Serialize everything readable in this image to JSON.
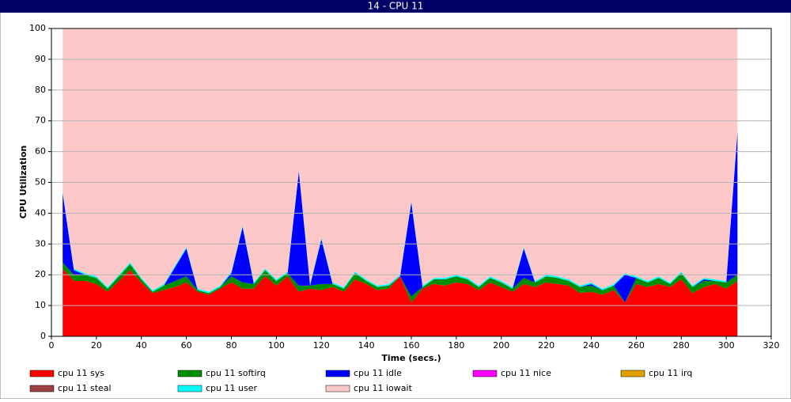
{
  "window_title": "14 - CPU 11",
  "chart_data": {
    "type": "stacked_area",
    "xlabel": "Time (secs.)",
    "ylabel": "CPU Utilization",
    "xlim": [
      0,
      320
    ],
    "xticks": [
      0,
      20,
      40,
      60,
      80,
      100,
      120,
      140,
      160,
      180,
      200,
      220,
      240,
      260,
      280,
      300,
      320
    ],
    "ylim": [
      0,
      100
    ],
    "yticks": [
      0,
      10,
      20,
      30,
      40,
      50,
      60,
      70,
      80,
      90,
      100
    ],
    "grid": true,
    "x": [
      5,
      10,
      15,
      20,
      25,
      30,
      35,
      40,
      45,
      50,
      55,
      60,
      65,
      70,
      75,
      80,
      85,
      90,
      95,
      100,
      105,
      110,
      115,
      120,
      125,
      130,
      135,
      140,
      145,
      150,
      155,
      160,
      165,
      170,
      175,
      180,
      185,
      190,
      195,
      200,
      205,
      210,
      215,
      220,
      225,
      230,
      235,
      240,
      245,
      250,
      255,
      260,
      265,
      270,
      275,
      280,
      285,
      290,
      295,
      300,
      305
    ],
    "series": [
      {
        "name": "cpu 11 sys",
        "color": "#ff0000",
        "values": [
          22,
          18,
          18,
          17,
          14.5,
          18,
          21.5,
          17.5,
          14,
          15,
          16,
          17.5,
          14.5,
          13.5,
          15.5,
          17.5,
          15.5,
          15.5,
          19.5,
          16.5,
          19.5,
          14.5,
          15.5,
          15,
          16,
          14.5,
          18.5,
          17,
          15,
          15.5,
          19.5,
          11,
          15.5,
          17,
          16.5,
          17.5,
          17,
          15,
          17.5,
          16,
          14.5,
          17,
          16,
          17.5,
          17,
          16.5,
          14,
          14.5,
          13.5,
          15,
          11,
          17,
          16,
          17,
          16,
          18.5,
          14,
          16,
          17,
          15.5,
          18
        ]
      },
      {
        "name": "cpu 11 softirq",
        "color": "#008c00",
        "values": [
          2,
          2,
          2,
          2,
          1,
          1.5,
          2,
          1,
          0.5,
          1.5,
          2,
          2,
          0.5,
          0.5,
          0.5,
          2,
          2,
          1.5,
          2,
          1.5,
          1,
          2,
          1,
          2,
          1,
          1,
          2,
          1,
          1,
          1,
          0,
          2,
          0.5,
          1.5,
          2,
          2,
          1.5,
          1,
          1.5,
          1.5,
          1,
          2,
          1.5,
          2,
          2,
          1.5,
          2,
          2,
          1.5,
          1.5,
          0,
          2,
          1.5,
          2,
          1,
          2,
          2,
          2,
          1,
          2,
          2
        ]
      },
      {
        "name": "cpu 11 idle",
        "color": "#0000ff",
        "values": [
          22.5,
          1.5,
          0,
          0,
          0,
          0,
          0,
          0,
          0,
          0,
          4.5,
          9,
          0,
          0,
          0,
          1,
          18,
          0,
          0,
          0,
          0,
          37,
          0,
          14.5,
          0,
          0,
          0,
          0,
          0,
          0,
          0,
          30.5,
          0,
          0,
          0,
          0,
          0,
          0,
          0,
          0,
          0,
          9.5,
          0,
          0,
          0,
          0,
          0,
          0.5,
          0,
          0,
          9,
          0,
          0,
          0,
          0,
          0,
          0,
          0.5,
          0,
          0,
          46.5
        ]
      },
      {
        "name": "cpu 11 nice",
        "color": "#ff00ff",
        "values": [
          0,
          0,
          0,
          0,
          0,
          0,
          0,
          0,
          0,
          0,
          0,
          0,
          0,
          0,
          0,
          0,
          0,
          0,
          0,
          0,
          0,
          0,
          0,
          0,
          0,
          0,
          0,
          0,
          0,
          0,
          0,
          0,
          0,
          0,
          0,
          0,
          0,
          0,
          0,
          0,
          0,
          0,
          0,
          0,
          0,
          0,
          0,
          0,
          0,
          0,
          0,
          0,
          0,
          0,
          0,
          0,
          0,
          0,
          0,
          0,
          0
        ]
      },
      {
        "name": "cpu 11 irq",
        "color": "#e0a000",
        "values": [
          0,
          0,
          0,
          0,
          0,
          0,
          0,
          0,
          0,
          0,
          0,
          0,
          0,
          0,
          0,
          0,
          0,
          0,
          0,
          0,
          0,
          0,
          0,
          0,
          0,
          0,
          0,
          0,
          0,
          0,
          0,
          0,
          0,
          0,
          0,
          0,
          0,
          0,
          0,
          0,
          0,
          0,
          0,
          0,
          0,
          0,
          0,
          0,
          0,
          0,
          0,
          0,
          0,
          0,
          0,
          0,
          0,
          0,
          0,
          0,
          0
        ]
      },
      {
        "name": "cpu 11 steal",
        "color": "#a04040",
        "values": [
          0,
          0,
          0,
          0,
          0,
          0,
          0,
          0,
          0,
          0,
          0,
          0,
          0,
          0,
          0,
          0,
          0,
          0,
          0,
          0,
          0,
          0,
          0,
          0,
          0,
          0,
          0,
          0,
          0,
          0,
          0,
          0,
          0,
          0,
          0,
          0,
          0,
          0,
          0,
          0,
          0,
          0,
          0,
          0,
          0,
          0,
          0,
          0,
          0,
          0,
          0,
          0,
          0,
          0,
          0,
          0,
          0,
          0,
          0,
          0,
          0
        ]
      },
      {
        "name": "cpu 11 user",
        "color": "#00ffff",
        "values": [
          0.5,
          0.5,
          0.5,
          0.5,
          0.5,
          0.5,
          0.5,
          0.5,
          0.5,
          0.5,
          0.5,
          0.5,
          0.5,
          0.5,
          0.5,
          0.5,
          0.5,
          0.5,
          0.5,
          0.5,
          0.5,
          0.5,
          0.5,
          0.5,
          0.5,
          0.5,
          0.5,
          0.5,
          0.5,
          0.5,
          0.5,
          0.5,
          0.5,
          0.5,
          0.5,
          0.5,
          0.5,
          0.5,
          0.5,
          0.5,
          0.5,
          0.5,
          0.5,
          0.5,
          0.5,
          0.5,
          0.5,
          0.5,
          0.5,
          0.5,
          0.5,
          0.5,
          0.5,
          0.5,
          0.5,
          0.5,
          0.5,
          0.5,
          0.5,
          0.5,
          0.5
        ]
      },
      {
        "name": "cpu 11 iowait",
        "color": "#ffc8c8",
        "values": [
          53,
          78,
          79.5,
          80.5,
          84,
          80,
          76,
          81,
          85,
          83,
          77,
          71,
          84.5,
          85.5,
          83.5,
          79,
          64,
          82.5,
          78,
          81.5,
          79,
          46,
          83,
          68,
          82.5,
          84,
          79,
          81.5,
          83.5,
          83,
          80,
          56,
          83.5,
          81,
          81,
          80,
          81,
          83.5,
          80.5,
          82,
          84,
          71,
          82,
          80,
          80.5,
          81.5,
          83.5,
          82.5,
          84.5,
          83,
          79.5,
          80.5,
          82,
          80.5,
          82.5,
          79,
          83.5,
          81,
          81.5,
          82,
          33
        ]
      }
    ]
  }
}
